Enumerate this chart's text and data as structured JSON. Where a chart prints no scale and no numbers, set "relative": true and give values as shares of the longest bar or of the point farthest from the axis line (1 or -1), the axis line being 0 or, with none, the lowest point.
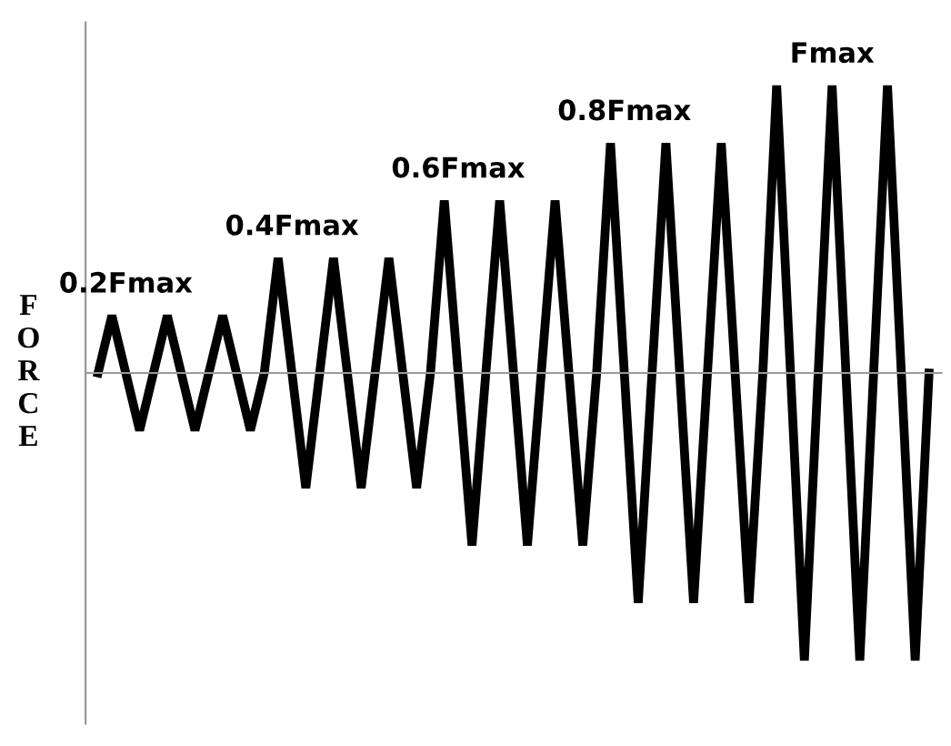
{
  "chart_data": {
    "type": "line",
    "relative": true,
    "tick_labels": false,
    "ylabel": "FORCE",
    "annotations": [
      "0.2Fmax",
      "0.4Fmax",
      "0.6Fmax",
      "0.8Fmax",
      "Fmax"
    ],
    "categories": [
      null,
      null,
      null,
      null,
      null,
      null,
      null,
      null,
      null,
      null,
      null,
      null,
      null,
      null,
      null,
      null,
      null,
      null,
      null,
      null,
      null,
      null,
      null,
      null,
      null,
      null,
      null,
      null,
      null,
      null,
      null,
      null,
      null,
      null,
      null,
      null,
      null,
      null,
      null,
      null,
      null,
      null,
      null,
      null,
      null,
      null,
      null,
      null,
      null,
      null,
      null,
      null,
      null,
      null,
      null,
      null,
      null,
      null,
      null,
      null,
      null
    ],
    "series": [
      {
        "color": "#000000",
        "values": [
          0,
          0.2,
          0,
          -0.2,
          0,
          0.2,
          0,
          -0.2,
          0,
          0.2,
          0,
          -0.2,
          0,
          0.4,
          0,
          -0.4,
          0,
          0.4,
          0,
          -0.4,
          0,
          0.4,
          0,
          -0.4,
          0,
          0.6,
          0,
          -0.6,
          0,
          0.6,
          0,
          -0.6,
          0,
          0.6,
          0,
          -0.6,
          0,
          0.8,
          0,
          -0.8,
          0,
          0.8,
          0,
          -0.8,
          0,
          0.8,
          0,
          -0.8,
          0,
          1,
          0,
          -1,
          0,
          1,
          0,
          -1,
          0,
          1,
          0,
          -1,
          0
        ]
      }
    ],
    "grid": false
  }
}
